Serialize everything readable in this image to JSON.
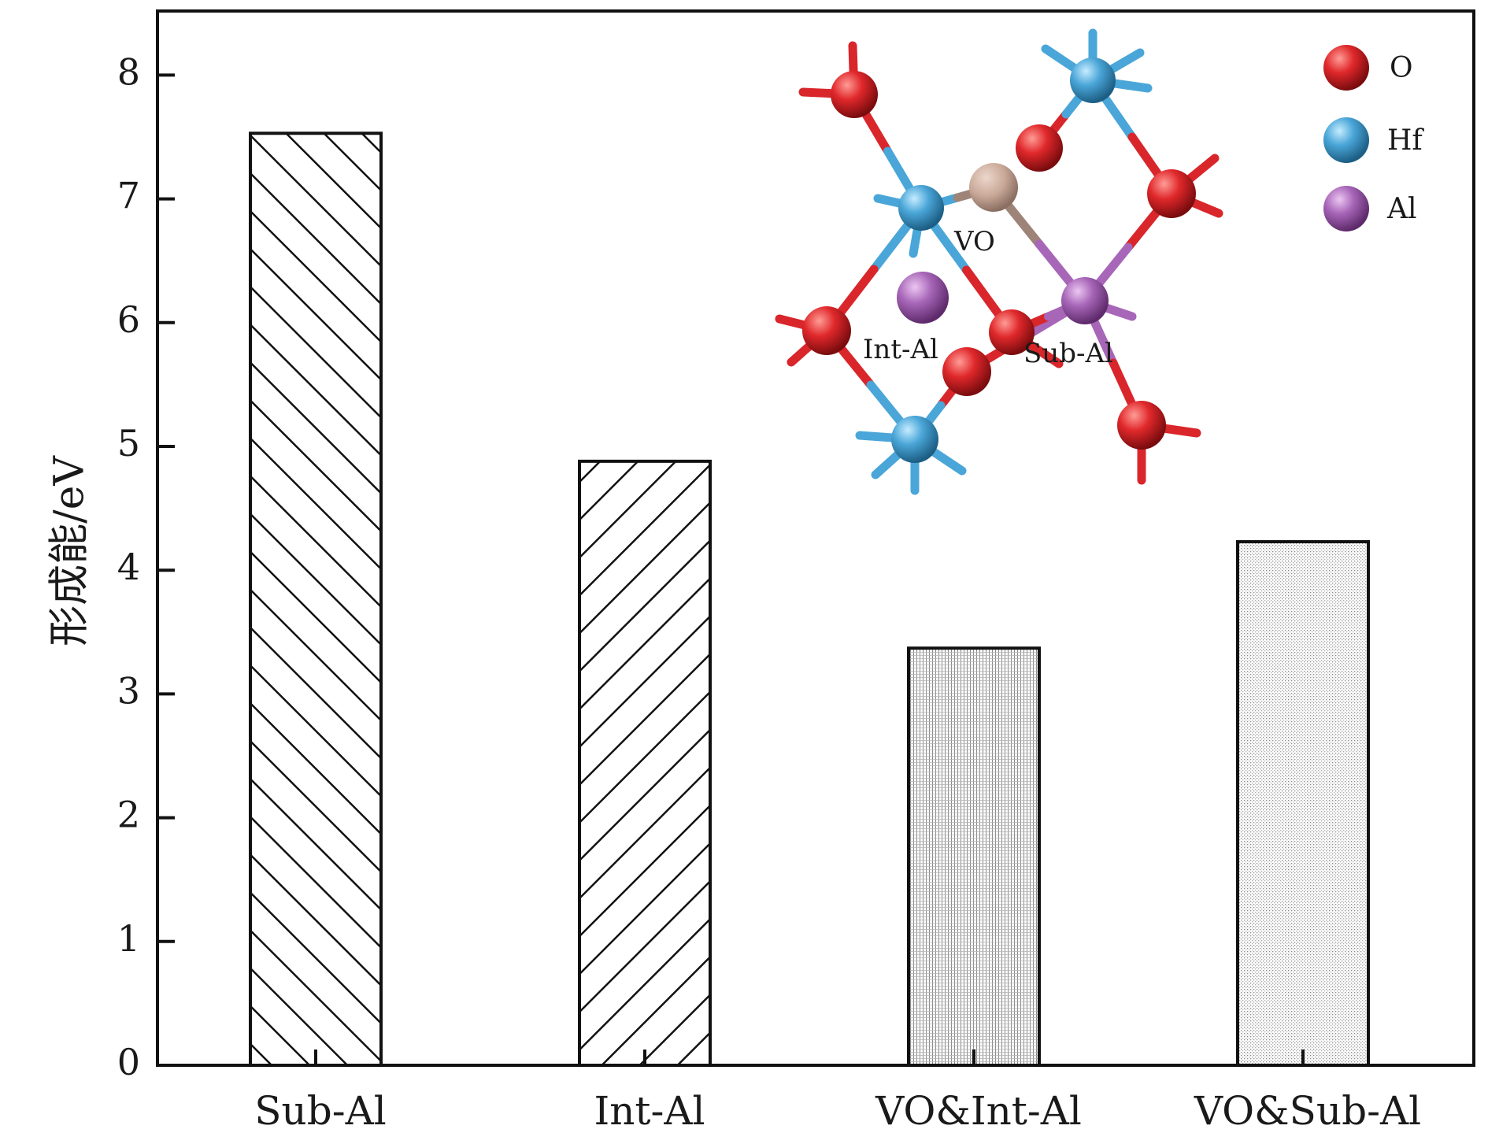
{
  "chart_data": {
    "type": "bar",
    "categories": [
      "Sub-Al",
      "Int-Al",
      "VO&Int-Al",
      "VO&Sub-Al"
    ],
    "values": [
      7.53,
      4.88,
      3.37,
      4.23
    ],
    "patterns": [
      "diag-up",
      "diag-down",
      "dense-grid",
      "fine-dots"
    ],
    "ylabel": "形成能/eV",
    "xlabel": "",
    "title": "",
    "ylim": [
      0,
      8.5
    ],
    "yticks": [
      0,
      1,
      2,
      3,
      4,
      5,
      6,
      7,
      8
    ],
    "grid": false,
    "inset": {
      "labels": {
        "vo": "VO",
        "int_al": "Int-Al",
        "sub_al": "Sub-Al"
      },
      "legend": [
        {
          "label": "O",
          "color": "#d9262b"
        },
        {
          "label": "Hf",
          "color": "#4aa6d8"
        },
        {
          "label": "Al",
          "color": "#a766b8"
        }
      ],
      "vacancy_color": "#c9a898"
    }
  }
}
